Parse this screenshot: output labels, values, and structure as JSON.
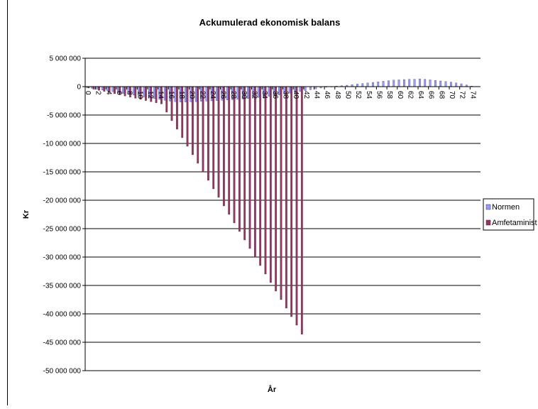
{
  "chart_data": {
    "type": "bar",
    "title": "Ackumulerad ekonomisk balans",
    "xlabel": "År",
    "ylabel": "Kr",
    "ylim": [
      -50000000,
      5000000
    ],
    "yticks": [
      5000000,
      0,
      -5000000,
      -10000000,
      -15000000,
      -20000000,
      -25000000,
      -30000000,
      -35000000,
      -40000000,
      -45000000,
      -50000000
    ],
    "ytick_labels": [
      "5 000 000",
      "0",
      "-5 000 000",
      "-10 000 000",
      "-15 000 000",
      "-20 000 000",
      "-25 000 000",
      "-30 000 000",
      "-35 000 000",
      "-40 000 000",
      "-45 000 000",
      "-50 000 000"
    ],
    "xtick_labels": [
      "0",
      "2",
      "4",
      "6",
      "8",
      "10",
      "12",
      "14",
      "16",
      "18",
      "20",
      "22",
      "24",
      "26",
      "28",
      "30",
      "32",
      "34",
      "36",
      "38",
      "40",
      "42",
      "44",
      "46",
      "48",
      "50",
      "52",
      "54",
      "56",
      "58",
      "60",
      "62",
      "64",
      "66",
      "68",
      "70",
      "72",
      "74"
    ],
    "categories": [
      0,
      1,
      2,
      3,
      4,
      5,
      6,
      7,
      8,
      9,
      10,
      11,
      12,
      13,
      14,
      15,
      16,
      17,
      18,
      19,
      20,
      21,
      22,
      23,
      24,
      25,
      26,
      27,
      28,
      29,
      30,
      31,
      32,
      33,
      34,
      35,
      36,
      37,
      38,
      39,
      40,
      41,
      42,
      43,
      44,
      45,
      46,
      47,
      48,
      49,
      50,
      51,
      52,
      53,
      54,
      55,
      56,
      57,
      58,
      59,
      60,
      61,
      62,
      63,
      64,
      65,
      66,
      67,
      68,
      69,
      70,
      71,
      72,
      73,
      74,
      75
    ],
    "grid": true,
    "legend_position": "right",
    "series": [
      {
        "name": "Normen",
        "color": "#9999ff",
        "values": [
          -150000,
          -300000,
          -450000,
          -600000,
          -750000,
          -900000,
          -1050000,
          -1200000,
          -1350000,
          -1500000,
          -1650000,
          -1800000,
          -1950000,
          -2100000,
          -2250000,
          -2400000,
          -2550000,
          -2650000,
          -2700000,
          -2700000,
          -2680000,
          -2650000,
          -2600000,
          -2550000,
          -2500000,
          -2450000,
          -2400000,
          -2350000,
          -2300000,
          -2250000,
          -2200000,
          -2100000,
          -2000000,
          -1900000,
          -1800000,
          -1700000,
          -1600000,
          -1450000,
          -1300000,
          -1150000,
          -1000000,
          -850000,
          -700000,
          -550000,
          -400000,
          -250000,
          -100000,
          0,
          100000,
          150000,
          250000,
          350000,
          450000,
          550000,
          650000,
          750000,
          850000,
          950000,
          1050000,
          1150000,
          1200000,
          1250000,
          1300000,
          1300000,
          1350000,
          1300000,
          1200000,
          1100000,
          1000000,
          900000,
          800000,
          650000,
          500000,
          300000,
          100000,
          50000
        ]
      },
      {
        "name": "Amfetaminist",
        "color": "#993366",
        "values": [
          -250000,
          -450000,
          -650000,
          -850000,
          -1050000,
          -1250000,
          -1450000,
          -1650000,
          -1850000,
          -2050000,
          -2250000,
          -2450000,
          -2650000,
          -2850000,
          -3050000,
          -4500000,
          -6000000,
          -7500000,
          -9000000,
          -10500000,
          -12000000,
          -13500000,
          -15000000,
          -16500000,
          -18000000,
          -19500000,
          -21000000,
          -22500000,
          -24000000,
          -25500000,
          -27000000,
          -28500000,
          -30000000,
          -31500000,
          -33000000,
          -34500000,
          -36000000,
          -37500000,
          -39000000,
          -40500000,
          -42000000,
          -43600000,
          null,
          null,
          null,
          null,
          null,
          null,
          null,
          null,
          null,
          null,
          null,
          null,
          null,
          null,
          null,
          null,
          null,
          null,
          null,
          null,
          null,
          null,
          null,
          null,
          null,
          null,
          null,
          null,
          null,
          null,
          null,
          null,
          null,
          null
        ]
      }
    ]
  }
}
